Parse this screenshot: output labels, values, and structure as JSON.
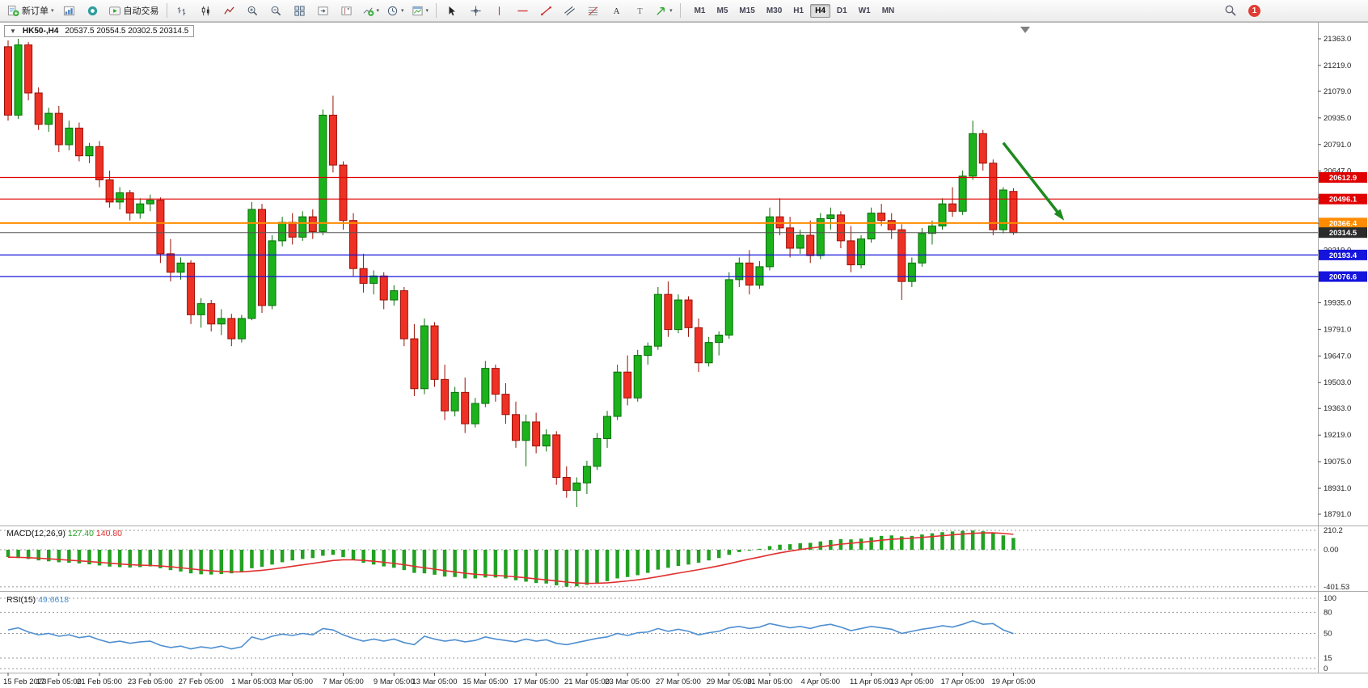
{
  "toolbar": {
    "new_order": "新订单",
    "auto_trading": "自动交易",
    "timeframes": [
      "M1",
      "M5",
      "M15",
      "M30",
      "H1",
      "H4",
      "D1",
      "W1",
      "MN"
    ],
    "active_timeframe": "H4",
    "notification_badge": "1"
  },
  "chart": {
    "symbol_period": "HK50-,H4",
    "ohlc_text": "20537.5 20554.5 20302.5 20314.5"
  },
  "chart_data": {
    "type": "candlestick",
    "symbol": "HK50-",
    "period": "H4",
    "ohlc_current": {
      "open": 20537.5,
      "high": 20554.5,
      "low": 20302.5,
      "close": 20314.5
    },
    "price_axis": {
      "ticks": [
        "21363.0",
        "21219.0",
        "21079.0",
        "20935.0",
        "20791.0",
        "20647.0",
        "20503.0",
        "20363.0",
        "20219.0",
        "20079.0",
        "19935.0",
        "19791.0",
        "19647.0",
        "19503.0",
        "19363.0",
        "19219.0",
        "19075.0",
        "18931.0",
        "18791.0"
      ]
    },
    "candles": [
      [
        21320,
        21355,
        20920,
        20950
      ],
      [
        20950,
        21363,
        20930,
        21330
      ],
      [
        21330,
        21345,
        21030,
        21070
      ],
      [
        21070,
        21100,
        20870,
        20900
      ],
      [
        20900,
        20990,
        20860,
        20960
      ],
      [
        20960,
        21000,
        20750,
        20790
      ],
      [
        20790,
        20920,
        20760,
        20880
      ],
      [
        20880,
        20910,
        20700,
        20730
      ],
      [
        20730,
        20800,
        20690,
        20780
      ],
      [
        20780,
        20810,
        20560,
        20600
      ],
      [
        20600,
        20650,
        20450,
        20480
      ],
      [
        20480,
        20560,
        20440,
        20530
      ],
      [
        20530,
        20545,
        20380,
        20420
      ],
      [
        20420,
        20500,
        20390,
        20470
      ],
      [
        20470,
        20520,
        20430,
        20490
      ],
      [
        20490,
        20505,
        20150,
        20200
      ],
      [
        20200,
        20280,
        20050,
        20100
      ],
      [
        20100,
        20180,
        20060,
        20150
      ],
      [
        20150,
        20165,
        19820,
        19870
      ],
      [
        19870,
        19960,
        19800,
        19930
      ],
      [
        19930,
        19950,
        19780,
        19820
      ],
      [
        19820,
        19900,
        19760,
        19850
      ],
      [
        19850,
        19875,
        19700,
        19740
      ],
      [
        19740,
        19870,
        19720,
        19850
      ],
      [
        19850,
        20480,
        19840,
        20440
      ],
      [
        20440,
        20470,
        19880,
        19920
      ],
      [
        19920,
        20300,
        19900,
        20270
      ],
      [
        20270,
        20400,
        20240,
        20370
      ],
      [
        20370,
        20420,
        20250,
        20290
      ],
      [
        20290,
        20430,
        20270,
        20400
      ],
      [
        20400,
        20440,
        20280,
        20320
      ],
      [
        20320,
        20980,
        20300,
        20950
      ],
      [
        20950,
        21055,
        20640,
        20680
      ],
      [
        20680,
        20700,
        20330,
        20380
      ],
      [
        20380,
        20420,
        20080,
        20120
      ],
      [
        20120,
        20200,
        19990,
        20040
      ],
      [
        20040,
        20110,
        19980,
        20080
      ],
      [
        20080,
        20100,
        19900,
        19950
      ],
      [
        19950,
        20030,
        19920,
        20000
      ],
      [
        20000,
        20020,
        19700,
        19740
      ],
      [
        19740,
        19820,
        19430,
        19470
      ],
      [
        19470,
        19850,
        19440,
        19810
      ],
      [
        19810,
        19830,
        19480,
        19520
      ],
      [
        19520,
        19600,
        19300,
        19350
      ],
      [
        19350,
        19480,
        19320,
        19450
      ],
      [
        19450,
        19530,
        19230,
        19280
      ],
      [
        19280,
        19420,
        19260,
        19390
      ],
      [
        19390,
        19620,
        19370,
        19580
      ],
      [
        19580,
        19600,
        19400,
        19440
      ],
      [
        19440,
        19500,
        19280,
        19330
      ],
      [
        19330,
        19400,
        19150,
        19190
      ],
      [
        19190,
        19330,
        19050,
        19290
      ],
      [
        19290,
        19340,
        19120,
        19160
      ],
      [
        19160,
        19250,
        19130,
        19220
      ],
      [
        19220,
        19240,
        18950,
        18990
      ],
      [
        18990,
        19050,
        18880,
        18920
      ],
      [
        18920,
        18990,
        18830,
        18960
      ],
      [
        18960,
        19080,
        18900,
        19050
      ],
      [
        19050,
        19230,
        19030,
        19200
      ],
      [
        19200,
        19350,
        19150,
        19320
      ],
      [
        19320,
        19600,
        19300,
        19560
      ],
      [
        19560,
        19650,
        19380,
        19420
      ],
      [
        19420,
        19680,
        19400,
        19650
      ],
      [
        19650,
        19720,
        19600,
        19700
      ],
      [
        19700,
        20020,
        19680,
        19980
      ],
      [
        19980,
        20050,
        19750,
        19790
      ],
      [
        19790,
        19980,
        19770,
        19950
      ],
      [
        19950,
        19970,
        19750,
        19800
      ],
      [
        19800,
        19850,
        19560,
        19610
      ],
      [
        19610,
        19750,
        19590,
        19720
      ],
      [
        19720,
        19780,
        19650,
        19760
      ],
      [
        19760,
        20100,
        19740,
        20060
      ],
      [
        20060,
        20180,
        20020,
        20150
      ],
      [
        20150,
        20220,
        19980,
        20030
      ],
      [
        20030,
        20160,
        20010,
        20130
      ],
      [
        20130,
        20450,
        20110,
        20400
      ],
      [
        20400,
        20500,
        20300,
        20340
      ],
      [
        20340,
        20400,
        20180,
        20230
      ],
      [
        20230,
        20330,
        20200,
        20300
      ],
      [
        20300,
        20380,
        20150,
        20190
      ],
      [
        20190,
        20420,
        20170,
        20390
      ],
      [
        20390,
        20450,
        20330,
        20410
      ],
      [
        20410,
        20430,
        20230,
        20270
      ],
      [
        20270,
        20350,
        20100,
        20140
      ],
      [
        20140,
        20300,
        20120,
        20280
      ],
      [
        20280,
        20450,
        20260,
        20420
      ],
      [
        20420,
        20470,
        20350,
        20380
      ],
      [
        20380,
        20420,
        20280,
        20330
      ],
      [
        20330,
        20360,
        19950,
        20050
      ],
      [
        20050,
        20180,
        20020,
        20150
      ],
      [
        20150,
        20340,
        20130,
        20310
      ],
      [
        20310,
        20380,
        20250,
        20350
      ],
      [
        20350,
        20500,
        20330,
        20470
      ],
      [
        20470,
        20560,
        20400,
        20430
      ],
      [
        20430,
        20650,
        20410,
        20620
      ],
      [
        20620,
        20920,
        20600,
        20850
      ],
      [
        20850,
        20870,
        20650,
        20690
      ],
      [
        20690,
        20710,
        20300,
        20330
      ],
      [
        20330,
        20560,
        20310,
        20545
      ],
      [
        20537.5,
        20554.5,
        20302.5,
        20314.5
      ]
    ],
    "hlines": [
      {
        "price": 20612.9,
        "label": "20612.9",
        "color": "#e00000",
        "width": 1.2
      },
      {
        "price": 20496.1,
        "label": "20496.1",
        "color": "#e00000",
        "width": 1.2
      },
      {
        "price": 20366.4,
        "label": "20366.4",
        "color": "#ff8c00",
        "width": 2
      },
      {
        "price": 20193.4,
        "label": "20193.4",
        "color": "#1414dd",
        "width": 1.2
      },
      {
        "price": 20076.6,
        "label": "20076.6",
        "color": "#1414dd",
        "width": 1.2
      }
    ],
    "current_price": {
      "price": 20314.5,
      "label": "20314.5",
      "color": "#2b2b2b"
    },
    "trend_arrow": {
      "from_index": 98,
      "from_price": 20800,
      "to_index": 104,
      "to_price": 20380,
      "color": "#1e8a1e"
    },
    "time_axis": [
      [
        "15 Feb 2023",
        0
      ],
      [
        "17 Feb 05:00",
        5
      ],
      [
        "21 Feb 05:00",
        9
      ],
      [
        "23 Feb 05:00",
        14
      ],
      [
        "27 Feb 05:00",
        19
      ],
      [
        "1 Mar 05:00",
        24
      ],
      [
        "3 Mar 05:00",
        28
      ],
      [
        "7 Mar 05:00",
        33
      ],
      [
        "9 Mar 05:00",
        38
      ],
      [
        "13 Mar 05:00",
        42
      ],
      [
        "15 Mar 05:00",
        47
      ],
      [
        "17 Mar 05:00",
        52
      ],
      [
        "21 Mar 05:00",
        57
      ],
      [
        "23 Mar 05:00",
        61
      ],
      [
        "27 Mar 05:00",
        66
      ],
      [
        "29 Mar 05:00",
        71
      ],
      [
        "31 Mar 05:00",
        75
      ],
      [
        "4 Apr 05:00",
        80
      ],
      [
        "11 Apr 05:00",
        85
      ],
      [
        "13 Apr 05:00",
        89
      ],
      [
        "17 Apr 05:00",
        94
      ],
      [
        "19 Apr 05:00",
        99
      ]
    ],
    "macd": {
      "title": "MACD(12,26,9)",
      "value_main": "127.40",
      "value_signal": "140.80",
      "axis": [
        {
          "v": 210.2,
          "label": "210.2"
        },
        {
          "v": 0,
          "label": "0.00"
        },
        {
          "v": -401.53,
          "label": "-401.53"
        }
      ],
      "histogram": [
        -80,
        -90,
        -100,
        -115,
        -125,
        -135,
        -140,
        -148,
        -158,
        -170,
        -182,
        -188,
        -192,
        -188,
        -180,
        -200,
        -220,
        -235,
        -255,
        -265,
        -268,
        -262,
        -255,
        -240,
        -200,
        -185,
        -160,
        -135,
        -115,
        -100,
        -90,
        -65,
        -55,
        -80,
        -110,
        -140,
        -160,
        -180,
        -195,
        -220,
        -250,
        -255,
        -270,
        -290,
        -295,
        -310,
        -310,
        -300,
        -300,
        -310,
        -330,
        -345,
        -360,
        -365,
        -385,
        -400,
        -395,
        -380,
        -360,
        -340,
        -310,
        -295,
        -275,
        -250,
        -215,
        -195,
        -175,
        -160,
        -140,
        -115,
        -90,
        -55,
        -25,
        -5,
        10,
        40,
        55,
        60,
        70,
        75,
        90,
        105,
        115,
        112,
        120,
        135,
        150,
        155,
        145,
        150,
        165,
        178,
        190,
        198,
        205,
        208,
        200,
        185,
        155,
        127.4
      ],
      "colors": {
        "histogram": "#22a122",
        "signal": "#e03030"
      }
    },
    "rsi": {
      "title": "RSI(15)",
      "value": "49.6618",
      "levels": [
        {
          "v": 100,
          "label": "100"
        },
        {
          "v": 80,
          "label": "80"
        },
        {
          "v": 50,
          "label": "50"
        },
        {
          "v": 15,
          "label": "15"
        },
        {
          "v": 0,
          "label": "0"
        }
      ],
      "series": [
        55,
        58,
        52,
        48,
        50,
        46,
        48,
        44,
        46,
        41,
        37,
        39,
        36,
        38,
        39,
        33,
        30,
        32,
        28,
        31,
        29,
        32,
        28,
        31,
        45,
        41,
        46,
        49,
        47,
        50,
        48,
        57,
        55,
        48,
        43,
        39,
        42,
        39,
        42,
        37,
        34,
        46,
        42,
        39,
        41,
        38,
        40,
        45,
        42,
        40,
        38,
        42,
        39,
        41,
        36,
        34,
        37,
        40,
        43,
        45,
        50,
        47,
        51,
        52,
        57,
        53,
        56,
        53,
        48,
        51,
        53,
        58,
        60,
        57,
        59,
        64,
        61,
        58,
        60,
        57,
        61,
        63,
        59,
        54,
        57,
        60,
        58,
        56,
        50,
        53,
        56,
        58,
        61,
        59,
        63,
        68,
        63,
        64,
        55,
        49.6618
      ],
      "color": "#4f8fd0"
    },
    "colors": {
      "bull": "#1cb21c",
      "bull_border": "#0a6e0a",
      "bear": "#ee3124",
      "bear_border": "#991007"
    }
  }
}
